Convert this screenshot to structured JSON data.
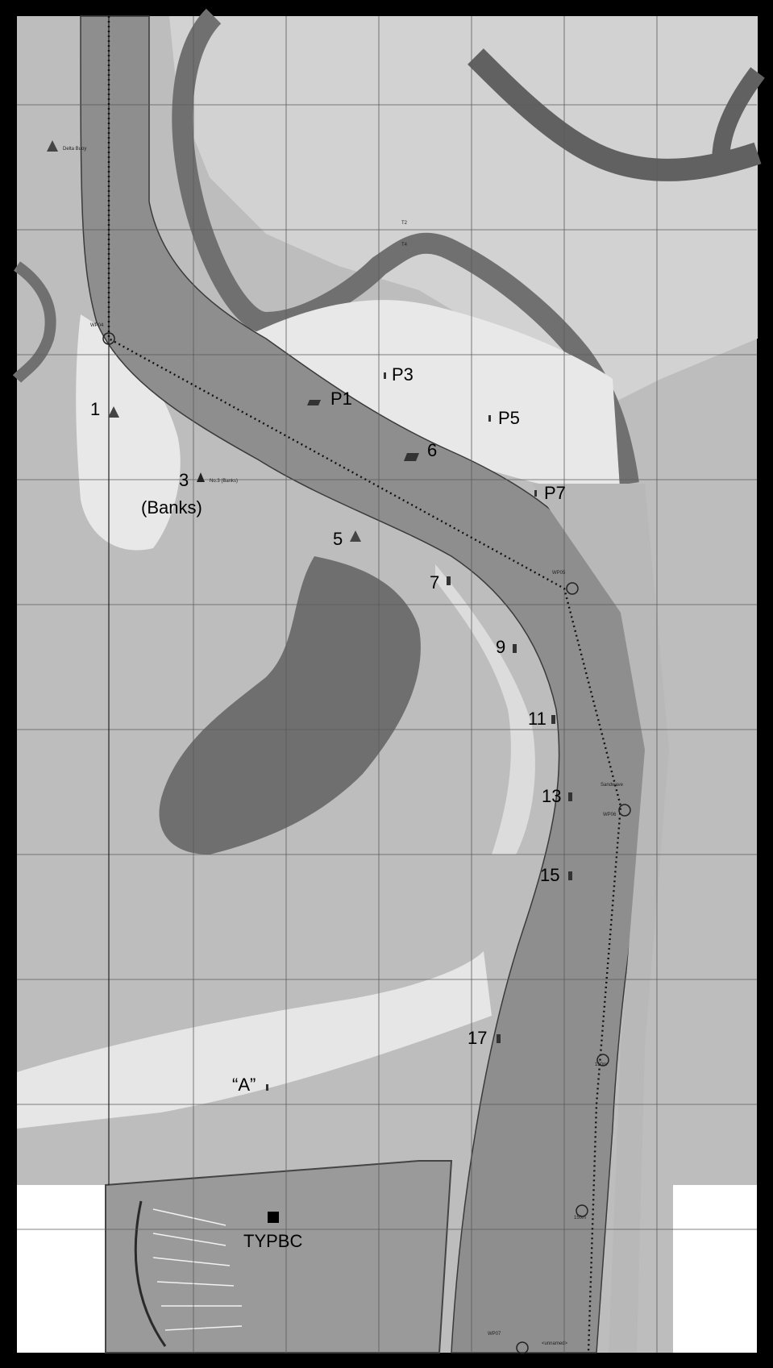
{
  "buoy_labels": {
    "b1": "1",
    "b3": "3",
    "b3_name": "(Banks)",
    "b5": "5",
    "b6": "6",
    "b7": "7",
    "b9": "9",
    "b11": "11",
    "b13": "13",
    "b15": "15",
    "b17": "17",
    "p1": "P1",
    "p3": "P3",
    "p5": "P5",
    "p7": "P7",
    "anchorage_a": "“A”",
    "club": "TYPBC"
  },
  "small_labels": {
    "delta_buoy": "Delta Buoy",
    "no3_banks": "No.3 (Banks)",
    "sandwave": "Sandwave",
    "t2": "T2",
    "t4": "T4",
    "wp_top": "WP04",
    "wp_mid": "WP05",
    "wp_low": "WP06",
    "wp_bottom": "WP07",
    "range_150_a": "150m",
    "range_150_b": "150m",
    "unnamed": "<unnamed>"
  },
  "colors": {
    "border": "#000000",
    "land_light": "#bdbdbd",
    "land_mid": "#a8a8a8",
    "sand": "#e6e6e6",
    "channel": "#8e8e8e",
    "deep": "#6e6e6e",
    "creek": "#5e5e5e",
    "grid": "#6a6a6a"
  }
}
